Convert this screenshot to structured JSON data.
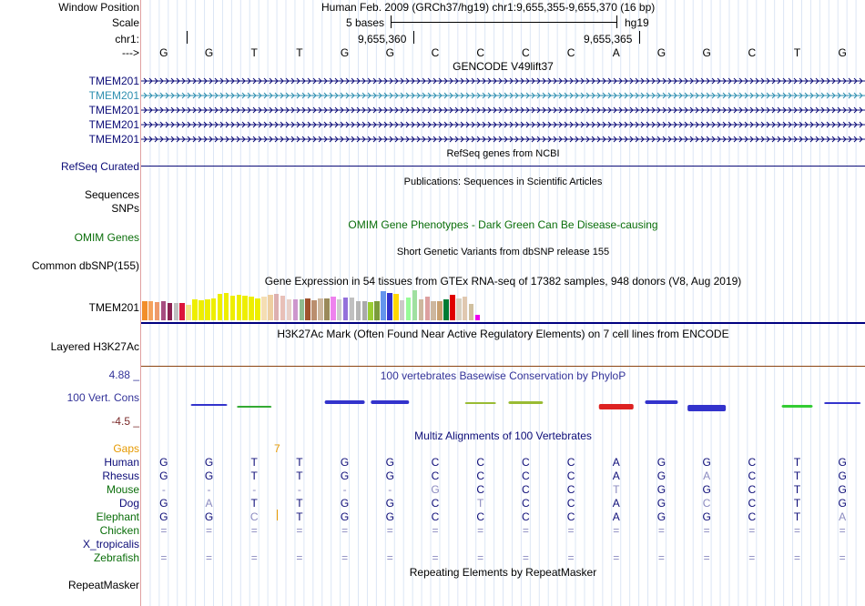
{
  "header": {
    "window_position_label": "Window Position",
    "scale_label": "Scale",
    "chrom_label": "chr1:",
    "strand_label": "--->",
    "position_title": "Human Feb. 2009 (GRCh37/hg19)   chr1:9,655,355-9,655,370 (16 bp)",
    "scale_text": "5 bases",
    "assembly": "hg19",
    "coord1": "9,655,360",
    "coord2": "9,655,365"
  },
  "dna": [
    "G",
    "G",
    "T",
    "T",
    "G",
    "G",
    "C",
    "C",
    "C",
    "C",
    "A",
    "G",
    "G",
    "C",
    "T",
    "G"
  ],
  "gencode": {
    "title": "GENCODE V49lift37",
    "labels": [
      "TMEM201",
      "TMEM201",
      "TMEM201",
      "TMEM201",
      "TMEM201"
    ],
    "colors": [
      "#0c0c78",
      "#2e8fb0",
      "#0c0c78",
      "#0c0c78",
      "#0c0c78"
    ]
  },
  "refseq": {
    "title": "RefSeq genes from NCBI",
    "label": "RefSeq Curated",
    "color": "#0c0c78"
  },
  "publications": {
    "title": "Publications: Sequences in Scientific Articles",
    "label": "Sequences"
  },
  "snps": {
    "label": "SNPs"
  },
  "omim": {
    "title": "OMIM Gene Phenotypes - Dark Green Can Be Disease-causing",
    "label": "OMIM Genes",
    "color": "#0a6e0a"
  },
  "dbsnp": {
    "title": "Short Genetic Variants from dbSNP release 155",
    "label": "Common dbSNP(155)"
  },
  "gtex": {
    "title": "Gene Expression in 54 tissues from GTEx RNA-seq of 17382 samples, 948 donors (V8, Aug 2019)",
    "label": "TMEM201",
    "bar_levels": [
      0.7,
      0.7,
      0.65,
      0.7,
      0.62,
      0.62,
      0.62,
      0.55,
      0.75,
      0.72,
      0.75,
      0.8,
      0.95,
      1.0,
      0.88,
      0.92,
      0.88,
      0.85,
      0.8,
      0.85,
      0.92,
      0.95,
      0.9,
      0.75,
      0.75,
      0.75,
      0.78,
      0.72,
      0.78,
      0.78,
      0.85,
      0.75,
      0.82,
      0.82,
      0.7,
      0.7,
      0.65,
      0.68,
      1.05,
      0.98,
      0.95,
      0.72,
      0.82,
      1.08,
      0.75,
      0.85,
      0.7,
      0.68,
      0.75,
      0.92,
      0.8,
      0.85,
      0.6,
      0.2
    ],
    "bar_colors": [
      "#f28e2b",
      "#f5a25c",
      "#ee9a6b",
      "#a64d80",
      "#8b2252",
      "#c0c0c0",
      "#dc143c",
      "#f0e68c",
      "#eeee00",
      "#eeee00",
      "#eeee00",
      "#eeee00",
      "#eeee00",
      "#eeee00",
      "#eeee00",
      "#eeee00",
      "#eeee00",
      "#eeee00",
      "#eeee00",
      "#f5deb3",
      "#eecfa1",
      "#ddb0b0",
      "#e8c0b8",
      "#e8d0c8",
      "#cd96cd",
      "#8fbc8f",
      "#a0522d",
      "#ba8e6e",
      "#cdb79e",
      "#9a8a5a",
      "#ee82ee",
      "#cccccc",
      "#9370db",
      "#c0c0c0",
      "#b5b5b5",
      "#aaaaaa",
      "#9acd32",
      "#7a9b3a",
      "#6495ed",
      "#3333cc",
      "#ffd700",
      "#cdc9c9",
      "#98fb98",
      "#a0e0a0",
      "#cdb79e",
      "#dda0a0",
      "#cdb79e",
      "#c8a070",
      "#007a33",
      "#e00000",
      "#d8d0c0",
      "#e0c8b0",
      "#d0c0a0",
      "#ee00ee"
    ],
    "line_color": "#000080"
  },
  "h3k27ac": {
    "title": "H3K27Ac Mark (Often Found Near Active Regulatory Elements) on 7 cell lines from ENCODE",
    "label": "Layered H3K27Ac",
    "line_color": "#8b4513"
  },
  "phylop": {
    "title": "100 vertebrates Basewise Conservation by PhyloP",
    "label": "100 Vert. Cons",
    "max": "4.88 _",
    "min": "-4.5 _",
    "title_color": "#333399",
    "max_color": "#333399",
    "min_color": "#7a2a2a"
  },
  "multiz": {
    "title": "Multiz Alignments of 100 Vertebrates",
    "title_color": "#0c0c78",
    "gaps_label": "Gaps",
    "gaps_value": "7",
    "gaps_color": "#e69900",
    "species": [
      {
        "name": "Human",
        "color": "#0c0c78",
        "bases": [
          "G",
          "G",
          "T",
          "T",
          "G",
          "G",
          "C",
          "C",
          "C",
          "C",
          "A",
          "G",
          "G",
          "C",
          "T",
          "G"
        ],
        "faded": []
      },
      {
        "name": "Rhesus",
        "color": "#0c0c78",
        "bases": [
          "G",
          "G",
          "T",
          "T",
          "G",
          "G",
          "C",
          "C",
          "C",
          "C",
          "A",
          "G",
          "A",
          "C",
          "T",
          "G"
        ],
        "faded": [
          12
        ]
      },
      {
        "name": "Mouse",
        "color": "#0a6e0a",
        "bases": [
          "-",
          "-",
          "-",
          "-",
          "-",
          "-",
          "G",
          "C",
          "C",
          "C",
          "T",
          "G",
          "G",
          "C",
          "T",
          "G"
        ],
        "faded": [
          0,
          1,
          2,
          3,
          4,
          5,
          6,
          10
        ]
      },
      {
        "name": "Dog",
        "color": "#0c0c78",
        "bases": [
          "G",
          "A",
          "T",
          "T",
          "G",
          "G",
          "C",
          "T",
          "C",
          "C",
          "A",
          "G",
          "C",
          "C",
          "T",
          "G"
        ],
        "faded": [
          1,
          7,
          12
        ]
      },
      {
        "name": "Elephant",
        "color": "#0a6e0a",
        "bases": [
          "G",
          "G",
          "C",
          "T",
          "G",
          "G",
          "C",
          "C",
          "C",
          "C",
          "A",
          "G",
          "G",
          "C",
          "T",
          "A"
        ],
        "faded": [
          2,
          15
        ]
      },
      {
        "name": "Chicken",
        "color": "#0a6e0a",
        "bases": [
          "=",
          "=",
          "=",
          "=",
          "=",
          "=",
          "=",
          "=",
          "=",
          "=",
          "=",
          "=",
          "=",
          "=",
          "=",
          "="
        ],
        "faded": [
          0,
          1,
          2,
          3,
          4,
          5,
          6,
          7,
          8,
          9,
          10,
          11,
          12,
          13,
          14,
          15
        ]
      },
      {
        "name": "X_tropicalis",
        "color": "#0c0c78",
        "bases": [],
        "faded": []
      },
      {
        "name": "Zebrafish",
        "color": "#0a6e0a",
        "bases": [
          "=",
          "=",
          "=",
          "=",
          "=",
          "=",
          "=",
          "=",
          "=",
          "=",
          "=",
          "=",
          "=",
          "=",
          "=",
          "="
        ],
        "faded": [
          0,
          1,
          2,
          3,
          4,
          5,
          6,
          7,
          8,
          9,
          10,
          11,
          12,
          13,
          14,
          15
        ]
      }
    ]
  },
  "repeatmasker": {
    "title": "Repeating Elements by RepeatMasker",
    "label": "RepeatMasker"
  }
}
